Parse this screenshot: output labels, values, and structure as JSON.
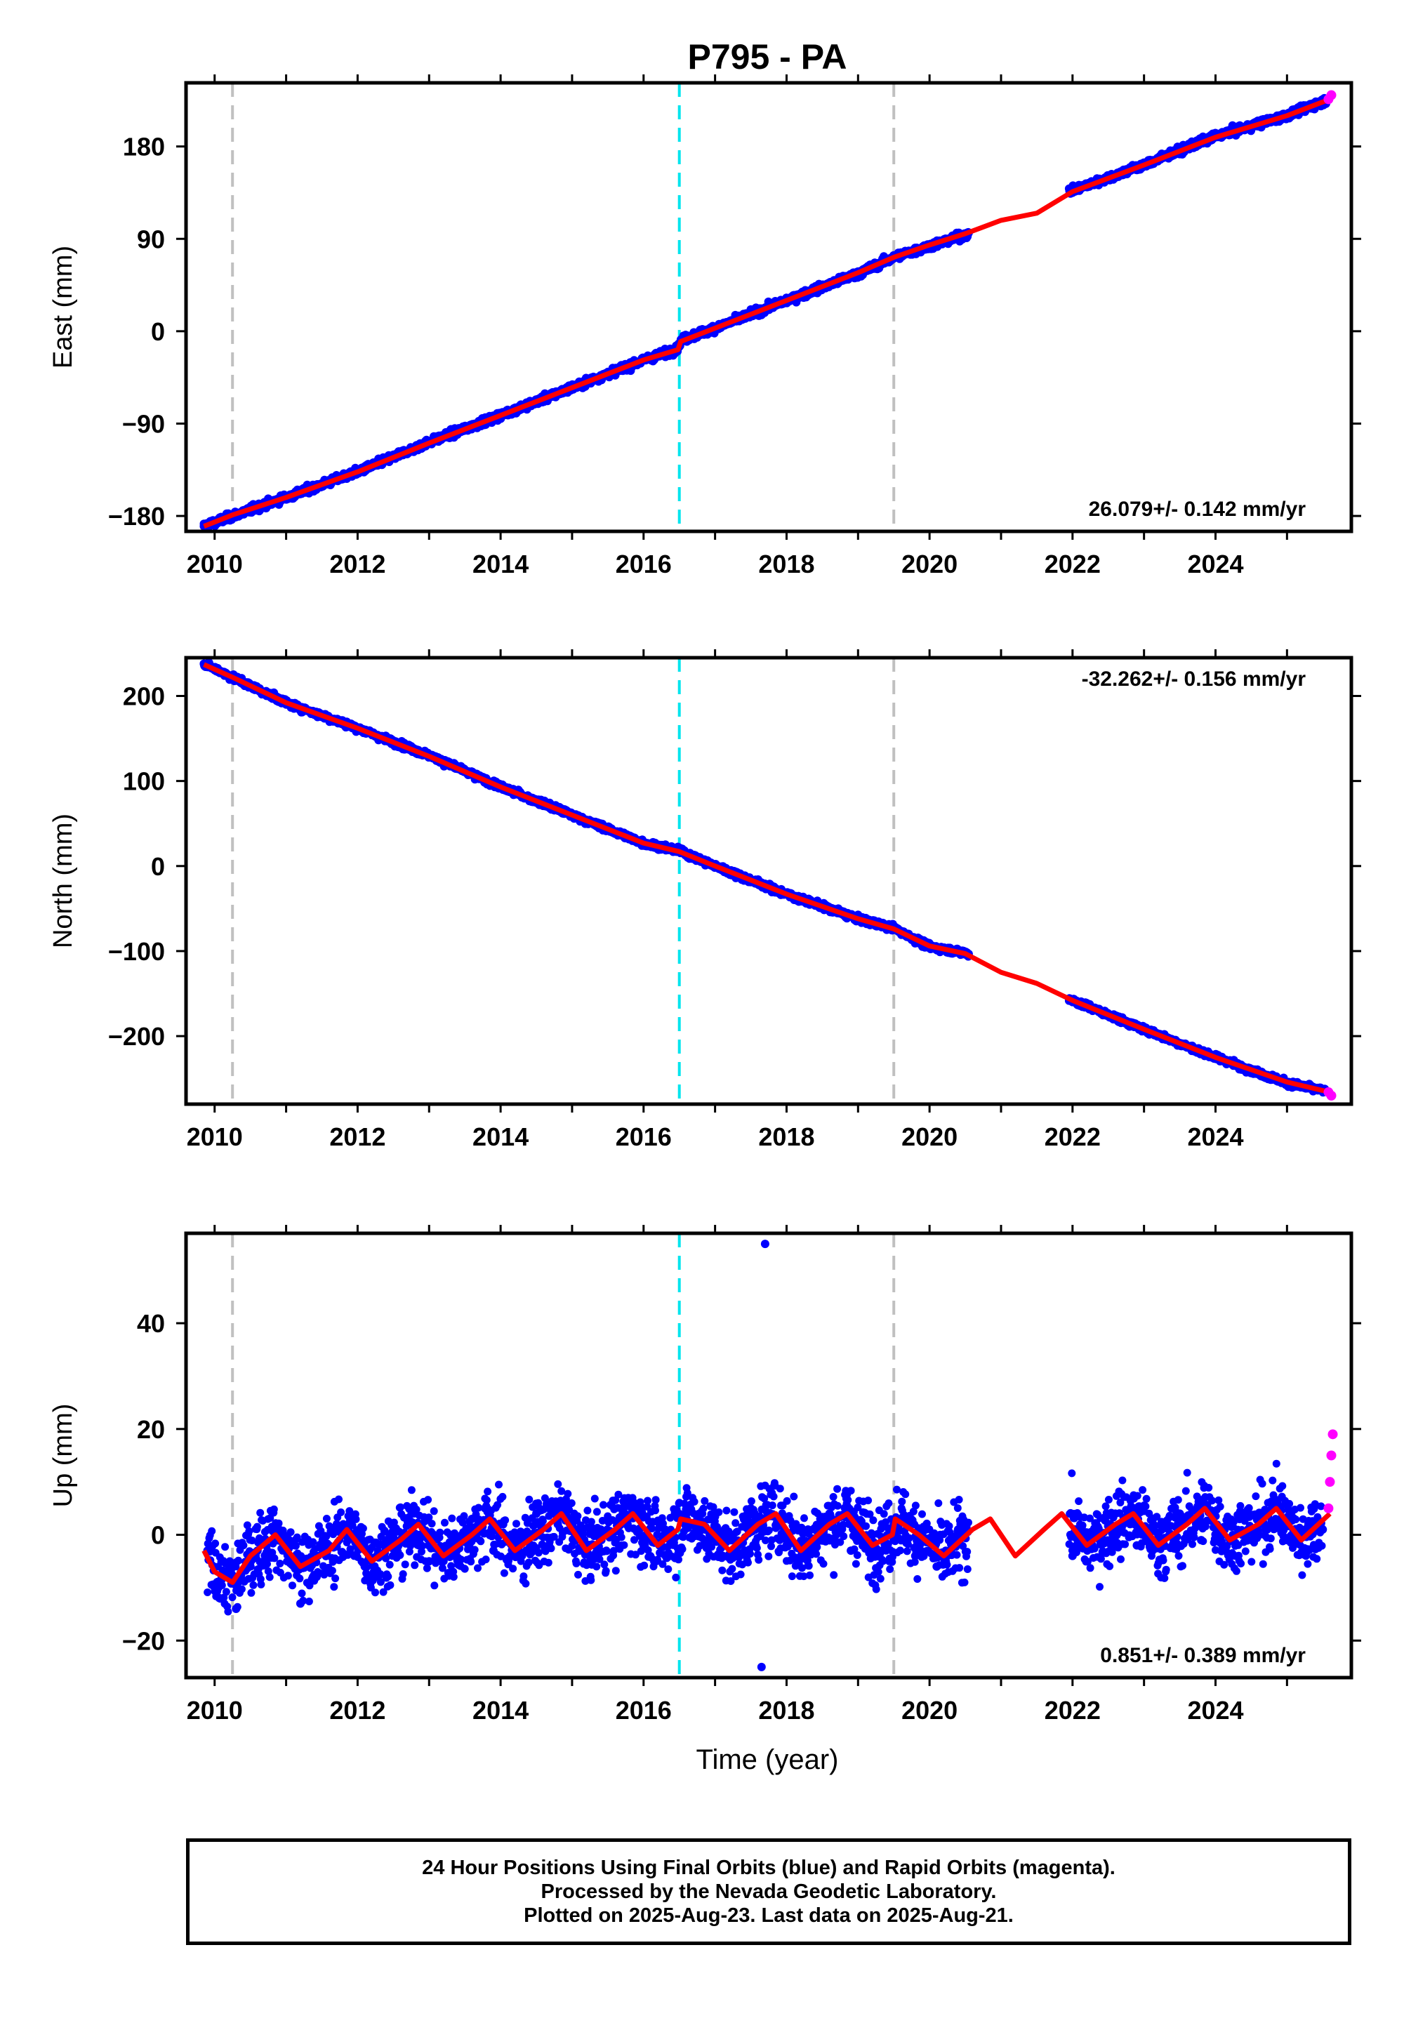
{
  "title": "P795 - PA",
  "xlabel": "Time (year)",
  "footer": {
    "line1": "24 Hour Positions Using Final Orbits (blue) and Rapid Orbits (magenta).",
    "line2": "Processed by the Nevada Geodetic Laboratory.",
    "line3": "Plotted on 2025-Aug-23. Last data on 2025-Aug-21."
  },
  "colors": {
    "final_orbits": "#0000ff",
    "rapid_orbits": "#ff00ff",
    "model_fit": "#ff0000",
    "equipment_change": "#c0c0c0",
    "earthquake": "#00e5ee"
  },
  "chart_data": [
    {
      "type": "scatter",
      "panel": "east",
      "ylabel": "East (mm)",
      "xlim": [
        2009.6,
        2025.9
      ],
      "ylim": [
        -195,
        242
      ],
      "yticks": [
        -180,
        -90,
        0,
        90,
        180
      ],
      "xticks": [
        2010,
        2012,
        2014,
        2016,
        2018,
        2020,
        2022,
        2024
      ],
      "rate_label": "26.079+/- 0.142 mm/yr",
      "rate_position": "bottom-right",
      "grid": false,
      "vlines": {
        "gray": [
          2010.25,
          2019.5
        ],
        "cyan": [
          2016.5
        ]
      },
      "series": [
        {
          "name": "Final Orbits",
          "color": "#0000ff",
          "x": [
            2009.85,
            2010.25,
            2011.0,
            2012.0,
            2013.0,
            2014.0,
            2015.0,
            2016.0,
            2016.45,
            2016.55,
            2017.0,
            2018.0,
            2019.0,
            2019.5,
            2020.0,
            2020.5,
            2022.0,
            2023.0,
            2024.0,
            2025.0,
            2025.55
          ],
          "y": [
            -190,
            -180,
            -162,
            -137,
            -108,
            -82,
            -55,
            -28,
            -18,
            -8,
            3,
            30,
            56,
            72,
            83,
            94,
            137,
            162,
            190,
            210,
            225
          ]
        },
        {
          "name": "Rapid Orbits",
          "color": "#ff00ff",
          "x": [
            2025.58,
            2025.62
          ],
          "y": [
            226,
            230
          ]
        }
      ],
      "model": {
        "x": [
          2009.85,
          2010.25,
          2011.0,
          2012.0,
          2013.0,
          2014.0,
          2015.0,
          2016.0,
          2016.48,
          2016.52,
          2017.0,
          2018.0,
          2019.0,
          2019.5,
          2020.0,
          2020.5,
          2021.0,
          2021.5,
          2022.0,
          2023.0,
          2024.0,
          2025.0,
          2025.6
        ],
        "y": [
          -190,
          -179,
          -162,
          -137,
          -109,
          -82,
          -55,
          -28,
          -18,
          -10,
          3,
          30,
          57,
          72,
          84,
          95,
          108,
          115,
          136,
          162,
          189,
          210,
          226
        ]
      }
    },
    {
      "type": "scatter",
      "panel": "north",
      "ylabel": "North (mm)",
      "xlim": [
        2009.6,
        2025.9
      ],
      "ylim": [
        -280,
        245
      ],
      "yticks": [
        -200,
        -100,
        0,
        100,
        200
      ],
      "xticks": [
        2010,
        2012,
        2014,
        2016,
        2018,
        2020,
        2022,
        2024
      ],
      "rate_label": "-32.262+/- 0.156 mm/yr",
      "rate_position": "top-right",
      "grid": false,
      "vlines": {
        "gray": [
          2010.25,
          2019.5
        ],
        "cyan": [
          2016.5
        ]
      },
      "series": [
        {
          "name": "Final Orbits",
          "color": "#0000ff",
          "x": [
            2009.85,
            2010.25,
            2011.0,
            2012.0,
            2013.0,
            2014.0,
            2015.0,
            2016.0,
            2016.5,
            2017.0,
            2018.0,
            2019.0,
            2019.5,
            2020.0,
            2020.5,
            2022.0,
            2023.0,
            2024.0,
            2025.0,
            2025.55
          ],
          "y": [
            238,
            222,
            192,
            162,
            130,
            93,
            60,
            27,
            18,
            0,
            -33,
            -62,
            -73,
            -95,
            -102,
            -158,
            -192,
            -225,
            -255,
            -265
          ]
        },
        {
          "name": "Rapid Orbits",
          "color": "#ff00ff",
          "x": [
            2025.58,
            2025.62
          ],
          "y": [
            -266,
            -270
          ]
        }
      ],
      "model": {
        "x": [
          2009.85,
          2010.25,
          2011.0,
          2012.0,
          2013.0,
          2014.0,
          2015.0,
          2016.0,
          2016.5,
          2017.0,
          2018.0,
          2019.0,
          2019.5,
          2020.0,
          2020.5,
          2021.0,
          2021.5,
          2022.0,
          2023.0,
          2024.0,
          2025.0,
          2025.6
        ],
        "y": [
          237,
          222,
          192,
          162,
          129,
          93,
          60,
          27,
          17,
          0,
          -33,
          -62,
          -74,
          -94,
          -103,
          -125,
          -138,
          -158,
          -192,
          -225,
          -254,
          -266
        ]
      }
    },
    {
      "type": "scatter",
      "panel": "up",
      "ylabel": "Up (mm)",
      "xlim": [
        2009.6,
        2025.9
      ],
      "ylim": [
        -27,
        57
      ],
      "yticks": [
        -20,
        0,
        20,
        40
      ],
      "xticks": [
        2010,
        2012,
        2014,
        2016,
        2018,
        2020,
        2022,
        2024
      ],
      "rate_label": "0.851+/- 0.389 mm/yr",
      "rate_position": "bottom-right",
      "grid": false,
      "vlines": {
        "gray": [
          2010.25,
          2019.5
        ],
        "cyan": [
          2016.5
        ]
      },
      "series": [
        {
          "name": "Final Orbits",
          "color": "#0000ff",
          "x": [
            2009.9,
            2010.1,
            2010.3,
            2010.6,
            2010.9,
            2011.2,
            2011.5,
            2011.8,
            2012.1,
            2012.4,
            2012.7,
            2013.0,
            2013.3,
            2013.6,
            2013.9,
            2014.2,
            2014.5,
            2014.8,
            2015.1,
            2015.4,
            2015.7,
            2016.0,
            2016.3,
            2016.6,
            2016.9,
            2017.2,
            2017.5,
            2017.65,
            2017.7,
            2018.0,
            2018.3,
            2018.6,
            2018.9,
            2019.2,
            2019.5,
            2019.8,
            2020.1,
            2020.4,
            2022.0,
            2022.3,
            2022.6,
            2022.9,
            2023.2,
            2023.5,
            2023.8,
            2024.1,
            2024.4,
            2024.7,
            2025.0,
            2025.3,
            2025.5
          ],
          "y": [
            -3,
            -8,
            -14,
            -3,
            1,
            -13,
            -2,
            2,
            -6,
            -1,
            3,
            -5,
            0,
            3,
            -3,
            -2,
            4,
            2,
            -3,
            1,
            5,
            -2,
            1,
            4,
            -1,
            0,
            5,
            -25,
            55,
            -2,
            1,
            4,
            -3,
            0,
            2,
            -4,
            -6,
            1,
            -4,
            1,
            4,
            -2,
            0,
            4,
            -1,
            0,
            4,
            1,
            -1,
            2,
            1
          ]
        },
        {
          "name": "Rapid Orbits",
          "color": "#ff00ff",
          "x": [
            2025.58,
            2025.6,
            2025.62,
            2025.64
          ],
          "y": [
            5,
            10,
            15,
            19
          ]
        }
      ],
      "model": {
        "x": [
          2009.85,
          2010.0,
          2010.25,
          2010.5,
          2010.85,
          2011.2,
          2011.6,
          2011.85,
          2012.2,
          2012.6,
          2012.85,
          2013.2,
          2013.6,
          2013.85,
          2014.2,
          2014.6,
          2014.85,
          2015.2,
          2015.6,
          2015.85,
          2016.2,
          2016.48,
          2016.52,
          2016.85,
          2017.2,
          2017.6,
          2017.85,
          2018.2,
          2018.6,
          2018.85,
          2019.2,
          2019.48,
          2019.52,
          2019.85,
          2020.2,
          2020.6,
          2020.85,
          2021.2,
          2021.6,
          2021.85,
          2022.2,
          2022.6,
          2022.85,
          2023.2,
          2023.6,
          2023.85,
          2024.2,
          2024.6,
          2024.85,
          2025.2,
          2025.6
        ],
        "y": [
          -3,
          -7,
          -9,
          -4,
          0,
          -6,
          -3,
          1,
          -5,
          -1,
          2,
          -4,
          0,
          3,
          -3,
          1,
          4,
          -3,
          1,
          4,
          -2,
          1,
          3,
          2,
          -3,
          2,
          4,
          -3,
          2,
          4,
          -2,
          0,
          3,
          0,
          -4,
          1,
          3,
          -4,
          1,
          4,
          -2,
          2,
          4,
          -2,
          2,
          5,
          -1,
          2,
          5,
          -1,
          4
        ]
      }
    }
  ]
}
